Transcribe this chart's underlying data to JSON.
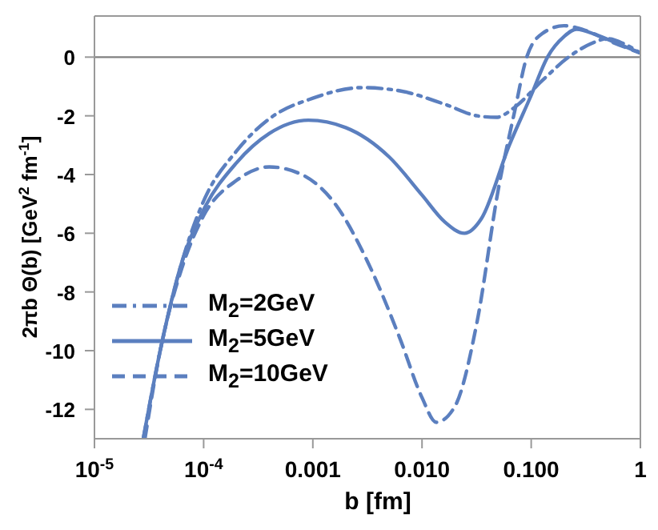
{
  "chart_data": {
    "type": "line",
    "xlabel": "b  [fm]",
    "ylabel": "2πb Θ(b)  [GeV$^{2}$ fm$^{-1}$]",
    "log": "x",
    "xlim": [
      1e-05,
      1
    ],
    "ylim": [
      -13,
      1.4
    ],
    "xticks": [
      {
        "value": 1e-05,
        "label": "10$^{-5}$"
      },
      {
        "value": 0.0001,
        "label": "10$^{-4}$"
      },
      0.001,
      {
        "value": 0.01,
        "label": "0.010"
      },
      {
        "value": 0.1,
        "label": "0.100"
      },
      1
    ],
    "yticks": [
      0,
      -2,
      -4,
      -6,
      -8,
      -10,
      -12
    ],
    "legend": "bottom left",
    "marker": "none",
    "ref_lines": [
      {
        "axis": "y",
        "value": 0,
        "color": "#808080"
      }
    ],
    "series": [
      {
        "name": "M$_{2}$=2GeV",
        "color": "#5b7fbf",
        "line_style": "dashdot",
        "x": [
          2.8e-05,
          4e-05,
          6.3e-05,
          0.0001,
          0.0002,
          0.0004,
          0.001,
          0.0028,
          0.0063,
          0.016,
          0.032,
          0.048,
          0.071,
          0.126,
          0.22,
          0.35,
          0.5,
          0.71,
          1
        ],
        "values": [
          -13,
          -10,
          -7,
          -4.9,
          -3.2,
          -2.1,
          -1.4,
          -1.04,
          -1.15,
          -1.6,
          -2.0,
          -2.05,
          -1.7,
          -0.8,
          0,
          0.45,
          0.63,
          0.45,
          0.14
        ]
      },
      {
        "name": "M$_{2}$=5GeV",
        "color": "#5b7fbf",
        "line_style": "solid",
        "x": [
          2.8e-05,
          4e-05,
          6.3e-05,
          0.0001,
          0.0002,
          0.0004,
          0.00091,
          0.002,
          0.005,
          0.01,
          0.016,
          0.0245,
          0.035,
          0.063,
          0.1,
          0.141,
          0.2,
          0.26,
          0.4,
          0.63,
          1
        ],
        "values": [
          -13,
          -10,
          -7,
          -5.2,
          -3.6,
          -2.6,
          -2.15,
          -2.4,
          -3.4,
          -4.7,
          -5.6,
          -6.0,
          -5.5,
          -3.0,
          -1.3,
          0,
          0.7,
          0.95,
          0.75,
          0.45,
          0.14
        ]
      },
      {
        "name": "M$_{2}$=10GeV",
        "color": "#5b7fbf",
        "line_style": "dashed",
        "x": [
          2.9e-05,
          4e-05,
          6.3e-05,
          0.0001,
          0.0002,
          0.0004,
          0.00079,
          0.0016,
          0.0032,
          0.0063,
          0.01,
          0.0135,
          0.02,
          0.032,
          0.05,
          0.071,
          0.091,
          0.126,
          0.2,
          0.32,
          0.56,
          1
        ],
        "values": [
          -13,
          -10,
          -7.2,
          -5.4,
          -4.2,
          -3.74,
          -4.0,
          -5.0,
          -7.0,
          -9.6,
          -11.6,
          -12.44,
          -11.9,
          -9.0,
          -4.5,
          -1.8,
          0,
          0.8,
          1.07,
          0.9,
          0.5,
          0.14
        ]
      }
    ]
  }
}
